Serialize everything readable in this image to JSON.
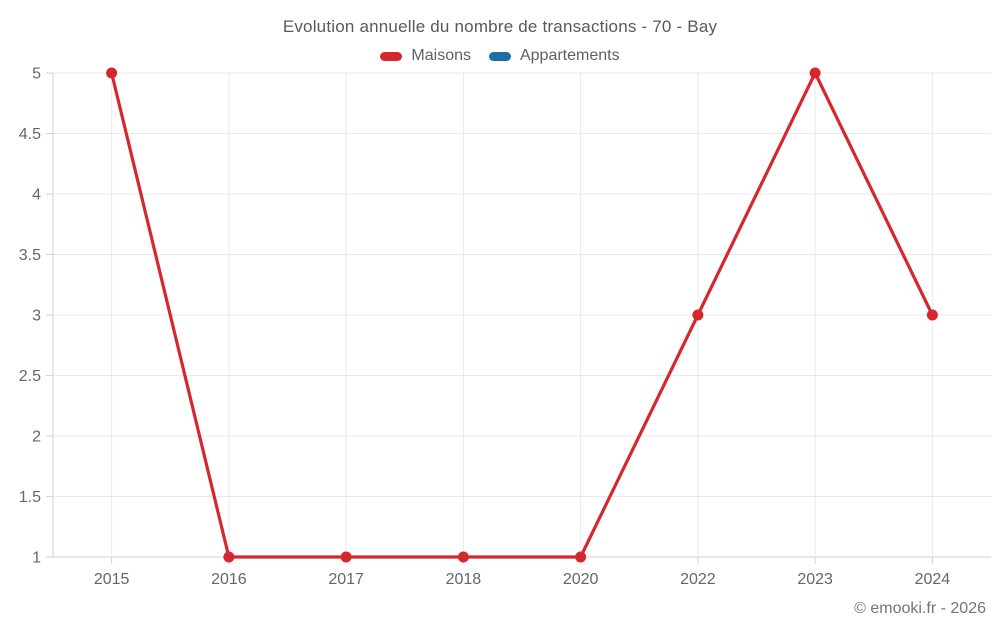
{
  "chart": {
    "title": "Evolution annuelle du nombre de transactions - 70 - Bay",
    "copyright": "© emooki.fr - 2026"
  },
  "legend": {
    "items": [
      {
        "label": "Maisons",
        "color": "#d5282e"
      },
      {
        "label": "Appartements",
        "color": "#1c6ea4"
      }
    ]
  },
  "chart_data": {
    "type": "line",
    "title": "Evolution annuelle du nombre de transactions - 70 - Bay",
    "categories": [
      "2015",
      "2016",
      "2017",
      "2018",
      "2020",
      "2022",
      "2023",
      "2024"
    ],
    "series": [
      {
        "name": "Maisons",
        "color": "#d5282e",
        "values": [
          5,
          1,
          1,
          1,
          1,
          3,
          5,
          3
        ]
      },
      {
        "name": "Appartements",
        "color": "#1c6ea4",
        "values": []
      }
    ],
    "xlabel": "",
    "ylabel": "",
    "ylim": [
      1,
      5
    ],
    "yticks": [
      1,
      1.5,
      2,
      2.5,
      3,
      3.5,
      4,
      4.5,
      5
    ],
    "grid": true,
    "legend_position": "top",
    "marker_radius": 5.5,
    "line_width": 3.2,
    "grid_color": "#e9e9e9",
    "axis_color": "#d2d2d2",
    "tick_label_color": "#666666"
  }
}
